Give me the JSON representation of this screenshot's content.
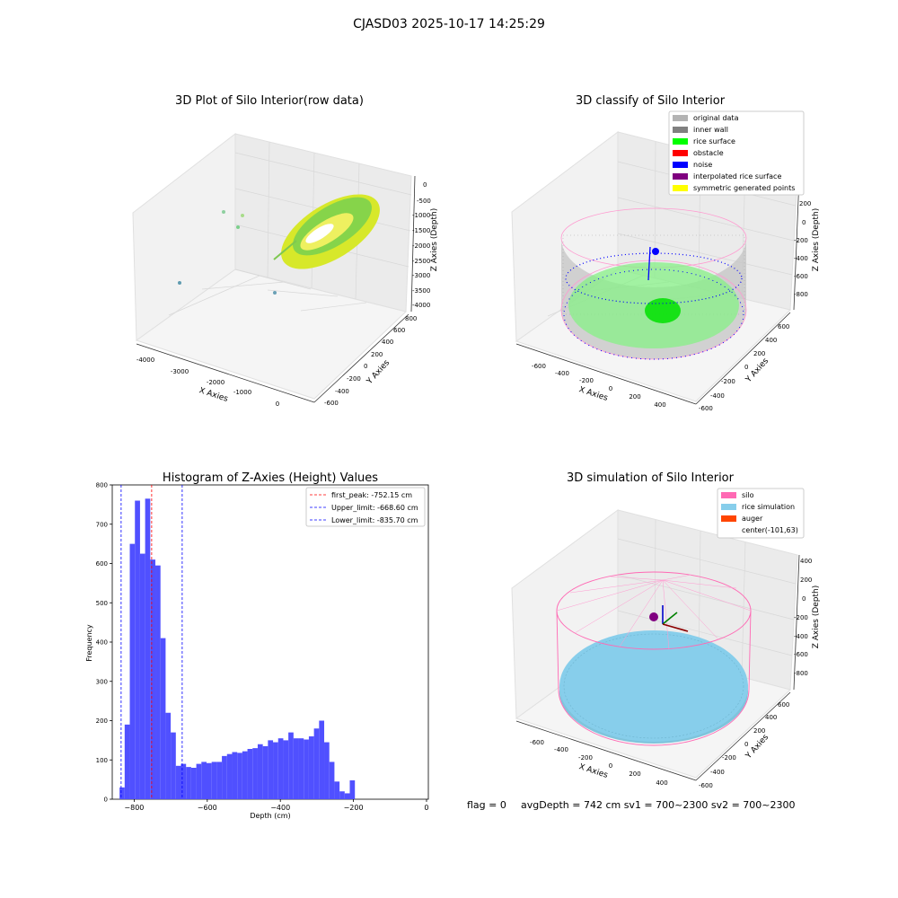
{
  "suptitle": "CJASD03 2025-10-17 14:25:29",
  "footer": {
    "flag": "flag = 0",
    "stats": "avgDepth = 742 cm  sv1 = 700~2300  sv2 = 700~2300"
  },
  "colors": {
    "original_data": "#b3b3b3",
    "inner_wall": "#808080",
    "rice_surface": "#00ff00",
    "obstacle": "#ff0000",
    "noise": "#0000ff",
    "interpolated_rice_surface": "#800080",
    "symmetric_generated_points": "#ffff00",
    "silo": "#ff69b4",
    "rice_simulation": "#87ceeb",
    "auger": "#ff4500",
    "hist_bar": "#5050ff",
    "first_peak_line": "#ff0000",
    "limit_line": "#0000ff"
  },
  "panels": {
    "raw": {
      "title": "3D Plot of Silo Interior(row data)",
      "xlabel": "X Axies",
      "ylabel": "Y Axies",
      "zlabel": "Z Axies (Depth)",
      "xticks": [
        "-4000",
        "-3000",
        "-2000",
        "-1000",
        "0"
      ],
      "yticks": [
        "-600",
        "-400",
        "-200",
        "0",
        "200",
        "400",
        "600",
        "800"
      ],
      "zticks": [
        "0",
        "-500",
        "-1000",
        "-1500",
        "-2000",
        "-2500",
        "-3000",
        "-3500",
        "-4000"
      ]
    },
    "classify": {
      "title": "3D classify of Silo Interior",
      "xlabel": "X Axies",
      "ylabel": "Y Axies",
      "zlabel": "Z Axies (Depth)",
      "xticks": [
        "-600",
        "-400",
        "-200",
        "0",
        "200",
        "400"
      ],
      "yticks": [
        "-600",
        "-400",
        "-200",
        "0",
        "200",
        "400",
        "600"
      ],
      "zticks": [
        "200",
        "0",
        "-200",
        "-400",
        "-600",
        "-800"
      ],
      "legend": [
        {
          "label": "original data",
          "color_key": "original_data"
        },
        {
          "label": "inner wall",
          "color_key": "inner_wall"
        },
        {
          "label": "rice surface",
          "color_key": "rice_surface"
        },
        {
          "label": "obstacle",
          "color_key": "obstacle"
        },
        {
          "label": "noise",
          "color_key": "noise"
        },
        {
          "label": "interpolated rice surface",
          "color_key": "interpolated_rice_surface"
        },
        {
          "label": "symmetric generated points",
          "color_key": "symmetric_generated_points"
        }
      ]
    },
    "simulation": {
      "title": "3D simulation of Silo Interior",
      "xlabel": "X Axies",
      "ylabel": "Y Axies",
      "zlabel": "Z Axies (Depth)",
      "xticks": [
        "-600",
        "-400",
        "-200",
        "0",
        "200",
        "400"
      ],
      "yticks": [
        "-600",
        "-400",
        "-200",
        "0",
        "200",
        "400",
        "600"
      ],
      "zticks": [
        "400",
        "200",
        "0",
        "-200",
        "-400",
        "-600",
        "-800"
      ],
      "legend": [
        {
          "label": "silo",
          "color_key": "silo"
        },
        {
          "label": "rice simulation",
          "color_key": "rice_simulation"
        },
        {
          "label": "auger",
          "color_key": "auger"
        },
        {
          "label": "center(-101,63)",
          "color_key": ""
        }
      ]
    }
  },
  "chart_data": {
    "type": "bar",
    "title": "Histogram of Z-Axies (Height) Values",
    "xlabel": "Depth (cm)",
    "ylabel": "Frequency",
    "xlim": [
      -860,
      5
    ],
    "ylim": [
      0,
      800
    ],
    "xticks": [
      -800,
      -600,
      -400,
      -200,
      0
    ],
    "yticks": [
      0,
      100,
      200,
      300,
      400,
      500,
      600,
      700,
      800
    ],
    "bin_width": 14,
    "bin_start": -840,
    "values": [
      30,
      190,
      650,
      760,
      625,
      765,
      610,
      595,
      410,
      220,
      170,
      85,
      90,
      82,
      80,
      90,
      95,
      92,
      95,
      95,
      110,
      115,
      120,
      118,
      122,
      128,
      130,
      140,
      135,
      150,
      145,
      155,
      150,
      170,
      155,
      155,
      152,
      160,
      180,
      200,
      145,
      95,
      45,
      20,
      15,
      48
    ],
    "vlines": [
      {
        "x": -752.15,
        "label": "first_peak: -752.15 cm",
        "color_key": "first_peak_line"
      },
      {
        "x": -668.6,
        "label": "Upper_limit: -668.60 cm",
        "color_key": "limit_line"
      },
      {
        "x": -835.7,
        "label": "Lower_limit: -835.70 cm",
        "color_key": "limit_line"
      }
    ]
  }
}
